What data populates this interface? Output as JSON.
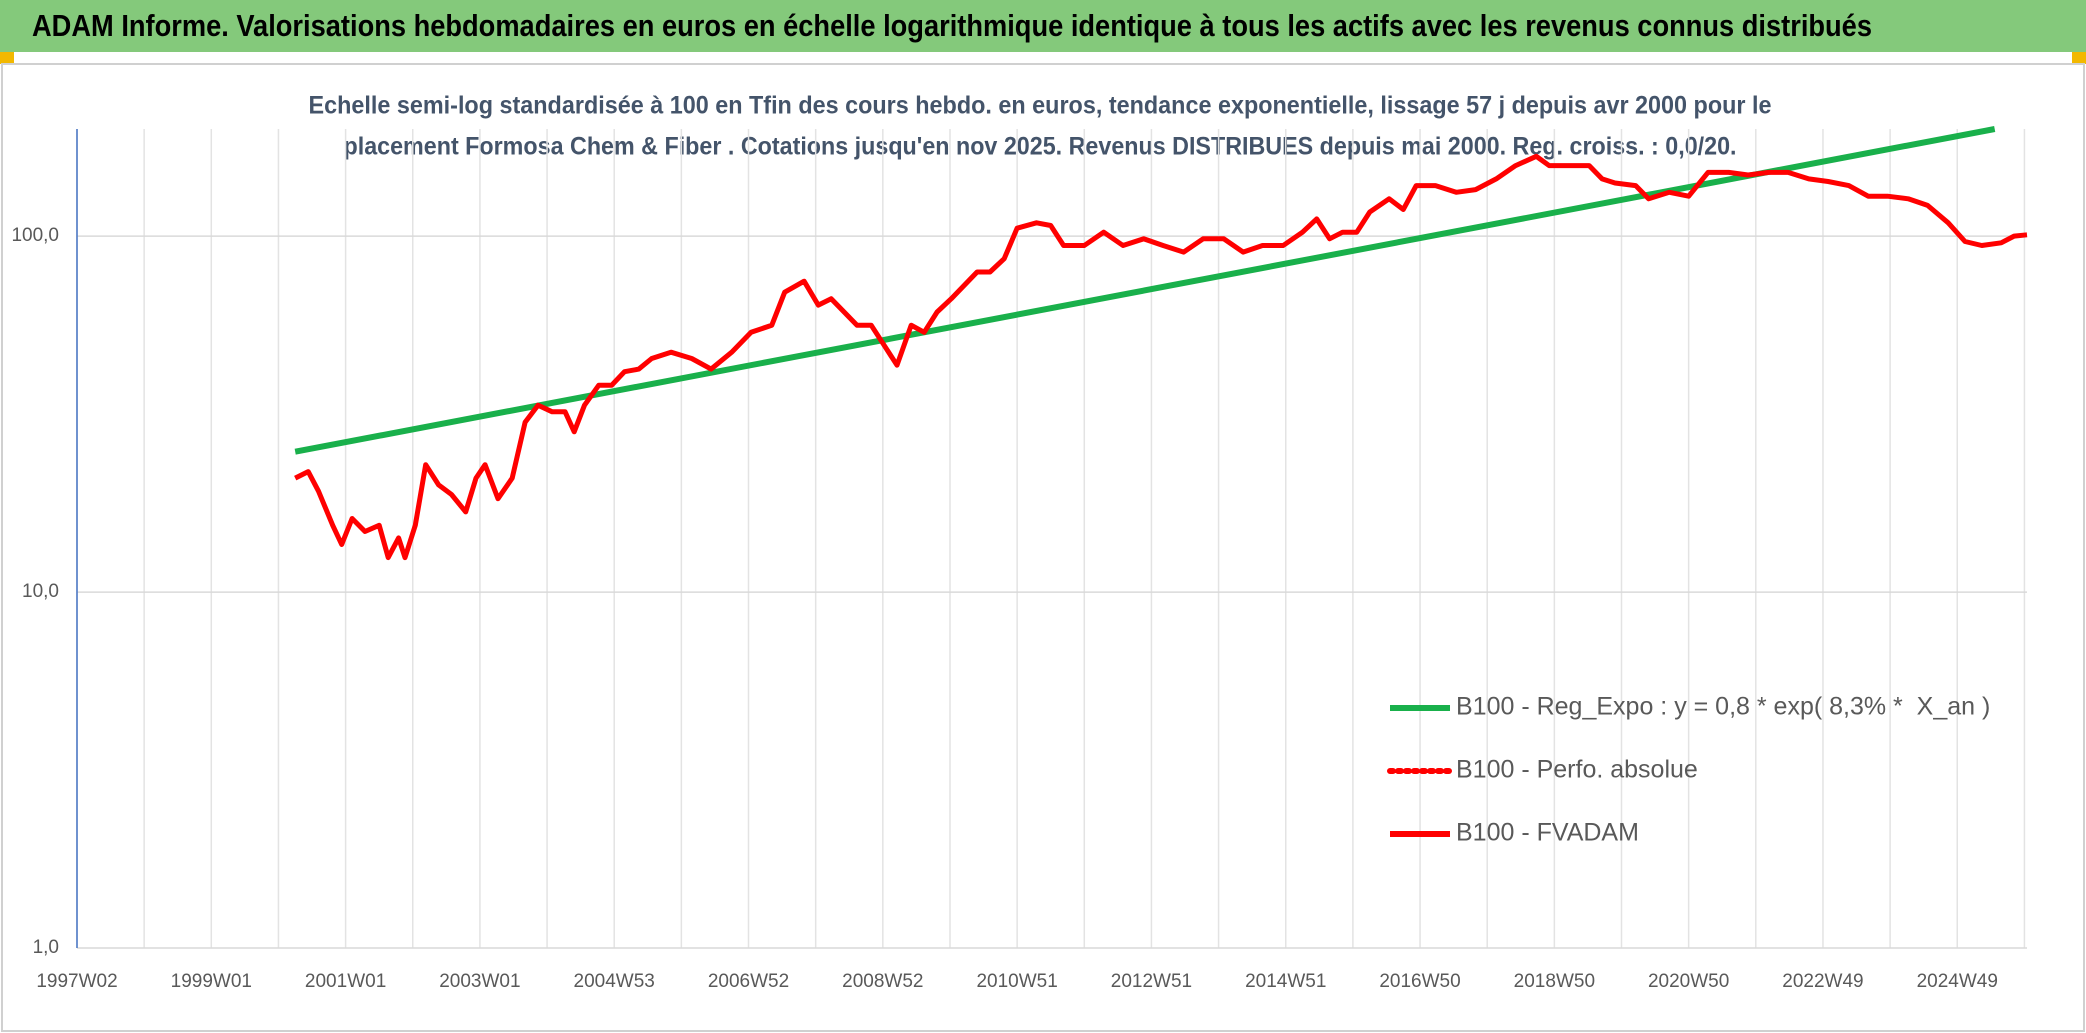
{
  "chart_data": {
    "type": "line",
    "title": "ADAM Informe. Valorisations hebdomadaires en euros en échelle logarithmique identique à tous les actifs avec les revenus connus distribués",
    "subtitle": [
      "Echelle semi-log standardisée à 100 en Tfin des cours hebdo. en euros, tendance exponentielle, lissage 57 j depuis avr 2000 pour le",
      "placement Formosa Chem & Fiber . Cotations jusqu'en nov 2025. Revenus DISTRIBUES depuis mai 2000. Reg. croiss. : 0,0/20."
    ],
    "log_scale": true,
    "grid": true,
    "legend": "lower right",
    "xlim": [
      0,
      1510
    ],
    "xticks": [
      {
        "value": 0,
        "label": "1997W02"
      },
      {
        "value": 104,
        "label": "1999W01"
      },
      {
        "value": 208,
        "label": "2001W01"
      },
      {
        "value": 312,
        "label": "2003W01"
      },
      {
        "value": 416,
        "label": "2004W53"
      },
      {
        "value": 520,
        "label": "2006W52"
      },
      {
        "value": 624,
        "label": "2008W52"
      },
      {
        "value": 728,
        "label": "2010W51"
      },
      {
        "value": 832,
        "label": "2012W51"
      },
      {
        "value": 936,
        "label": "2014W51"
      },
      {
        "value": 1040,
        "label": "2016W50"
      },
      {
        "value": 1144,
        "label": "2018W50"
      },
      {
        "value": 1248,
        "label": "2020W50"
      },
      {
        "value": 1352,
        "label": "2022W49"
      },
      {
        "value": 1456,
        "label": "2024W49"
      }
    ],
    "ylim": [
      1,
      200
    ],
    "yticks": [
      {
        "value": 1,
        "label": "1,0"
      },
      {
        "value": 10,
        "label": "10,0"
      },
      {
        "value": 100,
        "label": "100,0"
      }
    ],
    "series": [
      {
        "name": "B100 - Reg_Expo : y = 0,8 * exp( 8,3% *  X_an )",
        "color": "#19b04b",
        "style": "solid",
        "x": [
          169,
          1485
        ],
        "values": [
          24.8,
          200
        ]
      },
      {
        "name": "B100 - Perfo. absolue",
        "color": "#ff0000",
        "style": "dotted",
        "x": [],
        "values": []
      },
      {
        "name": "B100 - FVADAM",
        "color": "#ff0000",
        "style": "solid",
        "x": [
          169,
          179,
          187,
          198,
          205,
          213,
          223,
          234,
          241,
          249,
          254,
          262,
          270,
          280,
          290,
          301,
          309,
          316,
          326,
          337,
          347,
          357,
          368,
          378,
          385,
          393,
          404,
          414,
          424,
          435,
          445,
          460,
          476,
          491,
          507,
          522,
          538,
          548,
          563,
          574,
          584,
          594,
          604,
          615,
          625,
          635,
          646,
          656,
          666,
          677,
          687,
          697,
          707,
          718,
          728,
          743,
          754,
          764,
          780,
          795,
          810,
          826,
          841,
          857,
          872,
          888,
          903,
          918,
          934,
          949,
          960,
          970,
          980,
          991,
          1001,
          1016,
          1027,
          1037,
          1052,
          1068,
          1083,
          1099,
          1114,
          1130,
          1140,
          1155,
          1171,
          1181,
          1191,
          1207,
          1217,
          1233,
          1248,
          1263,
          1279,
          1294,
          1310,
          1325,
          1341,
          1356,
          1372,
          1387,
          1402,
          1418,
          1433,
          1449,
          1462,
          1475,
          1490,
          1500,
          1510
        ],
        "values": [
          20.9,
          21.8,
          19.2,
          15.4,
          13.6,
          16.1,
          14.8,
          15.4,
          12.5,
          14.2,
          12.5,
          15.4,
          22.8,
          20.0,
          18.8,
          16.8,
          20.9,
          22.8,
          18.3,
          20.9,
          30.0,
          33.5,
          32.1,
          32.1,
          28.2,
          33.5,
          38.1,
          38.1,
          41.6,
          42.3,
          45.3,
          47.2,
          45.3,
          42.3,
          47.2,
          53.7,
          56.2,
          69.6,
          74.7,
          64.0,
          66.7,
          61.2,
          56.2,
          56.2,
          49.4,
          43.4,
          56.2,
          53.7,
          61.2,
          66.7,
          72.7,
          79.3,
          79.3,
          86.4,
          105.3,
          109.0,
          107.1,
          94.1,
          94.1,
          102.6,
          94.1,
          98.3,
          94.1,
          90.2,
          98.3,
          98.3,
          90.2,
          94.1,
          94.1,
          102.6,
          111.8,
          98.3,
          102.6,
          102.6,
          116.8,
          127.3,
          118.8,
          138.7,
          138.7,
          132.8,
          135.1,
          144.8,
          157.8,
          167.6,
          157.8,
          157.8,
          157.8,
          144.8,
          141.0,
          138.7,
          127.3,
          132.8,
          129.5,
          151.0,
          151.0,
          148.5,
          151.0,
          151.0,
          144.8,
          142.4,
          138.7,
          129.5,
          129.5,
          127.3,
          122.0,
          109.0,
          96.6,
          94.1,
          95.8,
          100.0,
          100.9
        ]
      }
    ]
  }
}
